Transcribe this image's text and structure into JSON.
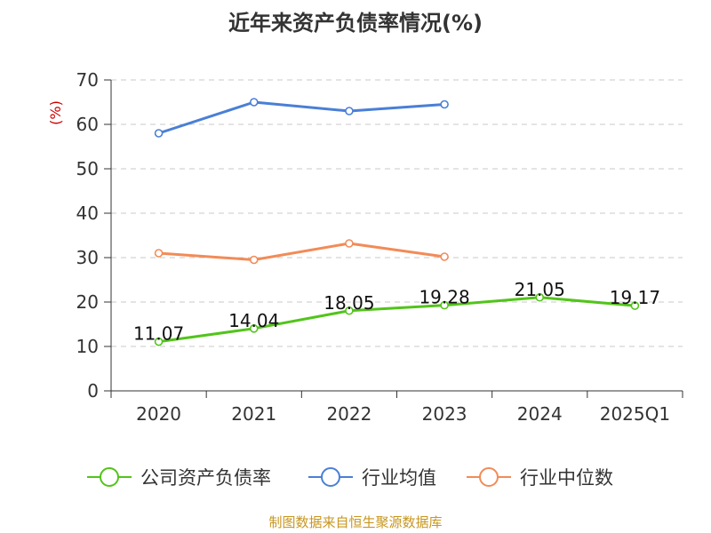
{
  "page": {
    "title": "近年来资产负债率情况(%)",
    "source": "制图数据来自恒生聚源数据库"
  },
  "chart_data": {
    "type": "line",
    "title": "近年来资产负债率情况(%)",
    "ylabel": "(%)",
    "xlabel": "",
    "categories": [
      "2020",
      "2021",
      "2022",
      "2023",
      "2024",
      "2025Q1"
    ],
    "yticks": [
      "0",
      "10",
      "20",
      "30",
      "40",
      "50",
      "60",
      "70"
    ],
    "ylim": [
      0,
      70
    ],
    "grid": true,
    "legend_position": "bottom",
    "series": [
      {
        "name": "公司资产负债率",
        "color": "#52c41a",
        "values": [
          11.07,
          14.04,
          18.05,
          19.28,
          21.05,
          19.17
        ],
        "labels": [
          "11.07",
          "14.04",
          "18.05",
          "19.28",
          "21.05",
          "19.17"
        ],
        "show_labels": true
      },
      {
        "name": "行业均值",
        "color": "#4a7fd6",
        "values": [
          58.0,
          65.0,
          63.0,
          64.5,
          null,
          null
        ],
        "show_labels": false
      },
      {
        "name": "行业中位数",
        "color": "#f28b58",
        "values": [
          31.0,
          29.5,
          33.2,
          30.2,
          null,
          null
        ],
        "show_labels": false
      }
    ]
  }
}
